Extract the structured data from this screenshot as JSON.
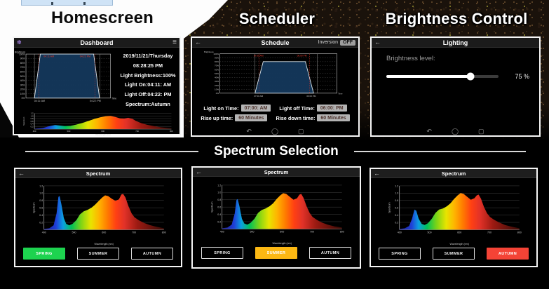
{
  "headings": {
    "homescreen": "Homescreen",
    "scheduler": "Scheduler",
    "brightness": "Brightness Control",
    "spectrum_selection": "Spectrum Selection"
  },
  "icons": {
    "back": "←",
    "menu": "≡",
    "app": "✽",
    "nav_back": "↶",
    "nav_home": "◯",
    "nav_recents": "▢"
  },
  "dashboard": {
    "title": "Dashboard",
    "info_lines": [
      "2019/11/21/Thursday",
      "08:28:25 PM",
      "Light Brightness:100%",
      "Light On:04:11: AM",
      "Light Off:04:22: PM",
      "Spectrum:Autumn"
    ]
  },
  "scheduler": {
    "title": "Schedule",
    "inversion_label": "Inversion",
    "inversion_state": "OFF",
    "fields": [
      {
        "label": "Light on Time:",
        "value": "07:00: AM"
      },
      {
        "label": "Light off Time:",
        "value": "06:00: PM"
      },
      {
        "label": "Rise up time:",
        "value": "60 Minutes"
      },
      {
        "label": "Rise down time:",
        "value": "60 Minutes"
      }
    ]
  },
  "lighting": {
    "title": "Lighting",
    "brightness_label": "Brightness level:",
    "brightness_value": "75 %",
    "brightness_percent": 75
  },
  "spectrum_screens": [
    {
      "title": "Spectrum",
      "buttons": [
        "SPRING",
        "SUMMER",
        "AUTUMN"
      ],
      "selected_index": 0,
      "selected_color": "#1dd34f"
    },
    {
      "title": "Spectrum",
      "buttons": [
        "SPRING",
        "SUMMER",
        "AUTUMN"
      ],
      "selected_index": 1,
      "selected_color": "#fcb813"
    },
    {
      "title": "Spectrum",
      "buttons": [
        "SPRING",
        "SUMMER",
        "AUTUMN"
      ],
      "selected_index": 2,
      "selected_color": "#f44336"
    }
  ],
  "rainbow_gradient": [
    [
      0,
      "#1a1b8f"
    ],
    [
      0.1,
      "#1f3fd8"
    ],
    [
      0.16,
      "#0b9fe0"
    ],
    [
      0.23,
      "#00c257"
    ],
    [
      0.31,
      "#7fd415"
    ],
    [
      0.39,
      "#e8e400"
    ],
    [
      0.46,
      "#ffb300"
    ],
    [
      0.53,
      "#ff7a00"
    ],
    [
      0.6,
      "#ff4013"
    ],
    [
      0.67,
      "#e23228"
    ],
    [
      0.78,
      "#9c1a12"
    ],
    [
      1,
      "#380b06"
    ]
  ],
  "chart_data": [
    {
      "id": "dashboard-brightness-schedule",
      "type": "area",
      "ylabel": "Brightness",
      "y_ticks": [
        "100%",
        "90%",
        "80%",
        "70%",
        "60%",
        "50%",
        "40%",
        "30%",
        "20%",
        "10%",
        "0%"
      ],
      "plateau": 1.0,
      "shape": {
        "base_start": 0.1,
        "top_start": 0.17,
        "top_end": 0.8,
        "base_end": 0.87
      },
      "red_lines": [
        0.155,
        0.815
      ],
      "grey_lines": [
        0.1,
        0.875
      ],
      "red_labels": [
        {
          "f": 0.27,
          "text": "04:11 AM"
        },
        {
          "f": 0.7,
          "text": "04:22 PM"
        }
      ],
      "x_labels": [
        {
          "f": 0.16,
          "text": "04:11: AM"
        },
        {
          "f": 0.82,
          "text": "04:22: PM"
        }
      ],
      "x_axis_label": "Time"
    },
    {
      "id": "dashboard-spectrum-autumn",
      "type": "area",
      "mini": true,
      "ylabel": "Spectrum",
      "xlabel": "Wavelength (nm)",
      "ymax": 1.2,
      "y_ticks": [
        0.2,
        0.4,
        0.6,
        0.8,
        1.0,
        1.2
      ],
      "x_ticks": [
        400,
        500,
        600,
        700,
        800
      ],
      "points": [
        [
          400,
          0.02
        ],
        [
          425,
          0.08
        ],
        [
          445,
          0.22
        ],
        [
          460,
          0.3
        ],
        [
          472,
          0.27
        ],
        [
          488,
          0.22
        ],
        [
          505,
          0.24
        ],
        [
          522,
          0.34
        ],
        [
          540,
          0.47
        ],
        [
          558,
          0.62
        ],
        [
          576,
          0.78
        ],
        [
          592,
          0.9
        ],
        [
          608,
          0.98
        ],
        [
          622,
          1.0
        ],
        [
          636,
          0.92
        ],
        [
          650,
          0.82
        ],
        [
          662,
          0.8
        ],
        [
          674,
          0.86
        ],
        [
          686,
          0.78
        ],
        [
          698,
          0.6
        ],
        [
          712,
          0.45
        ],
        [
          728,
          0.33
        ],
        [
          748,
          0.22
        ],
        [
          770,
          0.13
        ],
        [
          800,
          0.05
        ]
      ]
    },
    {
      "id": "schedule-brightness",
      "type": "area",
      "ylabel": "Brightness",
      "y_ticks": [
        "100%",
        "90%",
        "80%",
        "70%",
        "60%",
        "50%",
        "40%",
        "30%",
        "20%",
        "10%",
        "0%"
      ],
      "plateau": 0.8,
      "shape": {
        "base_start": 0.3,
        "top_start": 0.37,
        "top_end": 0.73,
        "base_end": 0.8
      },
      "red_lines": [
        0.335,
        0.765
      ],
      "grey_lines": [
        0.3,
        0.83
      ],
      "red_labels": [
        {
          "f": 0.33,
          "text": "07:00 AM"
        },
        {
          "f": 0.7,
          "text": "06:00 PM"
        }
      ],
      "x_labels": [
        {
          "f": 0.33,
          "text": "07:00 AM"
        },
        {
          "f": 0.78,
          "text": "06:00 PM"
        }
      ],
      "x_axis_label": "Time"
    },
    {
      "id": "spectrum-spring",
      "type": "area",
      "ylabel": "Spectrum",
      "xlabel": "Wavelength (nm)",
      "ymax": 1.2,
      "y_ticks": [
        0.2,
        0.4,
        0.6,
        0.8,
        1.0,
        1.2
      ],
      "x_ticks": [
        400,
        500,
        600,
        700,
        800
      ],
      "points": [
        [
          400,
          0.02
        ],
        [
          418,
          0.04
        ],
        [
          432,
          0.12
        ],
        [
          442,
          0.45
        ],
        [
          448,
          0.9
        ],
        [
          452,
          0.92
        ],
        [
          458,
          0.7
        ],
        [
          466,
          0.32
        ],
        [
          474,
          0.16
        ],
        [
          484,
          0.12
        ],
        [
          495,
          0.16
        ],
        [
          508,
          0.26
        ],
        [
          520,
          0.42
        ],
        [
          532,
          0.5
        ],
        [
          545,
          0.54
        ],
        [
          558,
          0.6
        ],
        [
          570,
          0.68
        ],
        [
          582,
          0.78
        ],
        [
          594,
          0.88
        ],
        [
          604,
          0.94
        ],
        [
          614,
          0.92
        ],
        [
          626,
          0.85
        ],
        [
          638,
          0.79
        ],
        [
          650,
          0.83
        ],
        [
          658,
          0.96
        ],
        [
          664,
          0.98
        ],
        [
          672,
          0.88
        ],
        [
          682,
          0.64
        ],
        [
          692,
          0.45
        ],
        [
          702,
          0.34
        ],
        [
          716,
          0.26
        ],
        [
          732,
          0.19
        ],
        [
          752,
          0.13
        ],
        [
          775,
          0.08
        ],
        [
          800,
          0.04
        ]
      ]
    },
    {
      "id": "spectrum-summer",
      "type": "area",
      "ylabel": "Spectrum",
      "xlabel": "Wavelength (nm)",
      "ymax": 1.2,
      "y_ticks": [
        0.2,
        0.4,
        0.6,
        0.8,
        1.0,
        1.2
      ],
      "x_ticks": [
        400,
        500,
        600,
        700,
        800
      ],
      "points": [
        [
          400,
          0.02
        ],
        [
          418,
          0.04
        ],
        [
          432,
          0.12
        ],
        [
          442,
          0.42
        ],
        [
          448,
          0.8
        ],
        [
          452,
          0.82
        ],
        [
          458,
          0.62
        ],
        [
          466,
          0.28
        ],
        [
          474,
          0.15
        ],
        [
          484,
          0.12
        ],
        [
          495,
          0.17
        ],
        [
          508,
          0.28
        ],
        [
          520,
          0.44
        ],
        [
          532,
          0.52
        ],
        [
          545,
          0.56
        ],
        [
          558,
          0.62
        ],
        [
          570,
          0.7
        ],
        [
          582,
          0.82
        ],
        [
          594,
          0.92
        ],
        [
          604,
          0.98
        ],
        [
          614,
          0.96
        ],
        [
          626,
          0.88
        ],
        [
          638,
          0.8
        ],
        [
          650,
          0.84
        ],
        [
          658,
          0.94
        ],
        [
          664,
          0.96
        ],
        [
          672,
          0.85
        ],
        [
          682,
          0.62
        ],
        [
          692,
          0.44
        ],
        [
          702,
          0.33
        ],
        [
          716,
          0.25
        ],
        [
          732,
          0.18
        ],
        [
          752,
          0.12
        ],
        [
          775,
          0.07
        ],
        [
          800,
          0.04
        ]
      ]
    },
    {
      "id": "spectrum-autumn",
      "type": "area",
      "ylabel": "Spectrum",
      "xlabel": "Wavelength (nm)",
      "ymax": 1.2,
      "y_ticks": [
        0.2,
        0.4,
        0.6,
        0.8,
        1.0,
        1.2
      ],
      "x_ticks": [
        400,
        500,
        600,
        700,
        800
      ],
      "points": [
        [
          400,
          0.02
        ],
        [
          418,
          0.04
        ],
        [
          432,
          0.1
        ],
        [
          442,
          0.3
        ],
        [
          450,
          0.55
        ],
        [
          456,
          0.52
        ],
        [
          464,
          0.3
        ],
        [
          474,
          0.16
        ],
        [
          484,
          0.13
        ],
        [
          495,
          0.18
        ],
        [
          508,
          0.3
        ],
        [
          520,
          0.46
        ],
        [
          532,
          0.55
        ],
        [
          545,
          0.58
        ],
        [
          558,
          0.64
        ],
        [
          570,
          0.72
        ],
        [
          582,
          0.84
        ],
        [
          594,
          0.94
        ],
        [
          604,
          1.0
        ],
        [
          614,
          0.98
        ],
        [
          626,
          0.9
        ],
        [
          638,
          0.82
        ],
        [
          650,
          0.86
        ],
        [
          658,
          0.94
        ],
        [
          664,
          0.96
        ],
        [
          672,
          0.85
        ],
        [
          682,
          0.62
        ],
        [
          692,
          0.45
        ],
        [
          702,
          0.35
        ],
        [
          716,
          0.27
        ],
        [
          732,
          0.2
        ],
        [
          752,
          0.13
        ],
        [
          775,
          0.08
        ],
        [
          800,
          0.04
        ]
      ]
    }
  ]
}
